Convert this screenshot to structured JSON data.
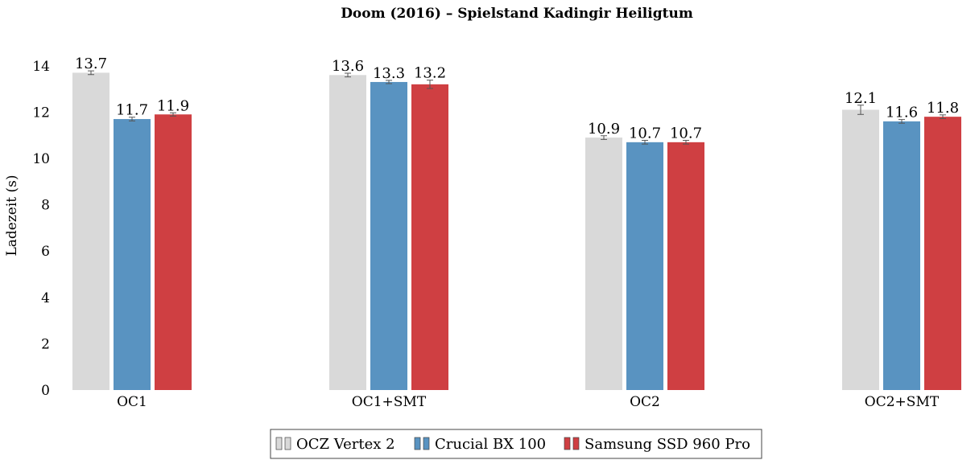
{
  "chart_data": {
    "type": "bar",
    "title": "Doom (2016) – Spielstand Kadingir Heiligtum",
    "xlabel": "",
    "ylabel": "Ladezeit (s)",
    "ylim": [
      0,
      15
    ],
    "yticks": [
      "0",
      "2",
      "4",
      "6",
      "8",
      "10",
      "12",
      "14"
    ],
    "grid": false,
    "legend_position": "bottom-center",
    "categories": [
      "OC1",
      "OC1+SMT",
      "OC2",
      "OC2+SMT"
    ],
    "series": [
      {
        "name": "OCZ Vertex 2",
        "color": "#d9d9d9",
        "values": [
          13.7,
          13.6,
          10.9,
          12.1
        ],
        "labels": [
          "13.7",
          "13.6",
          "10.9",
          "12.1"
        ],
        "errors": [
          0.08,
          0.08,
          0.08,
          0.2
        ]
      },
      {
        "name": "Crucial BX 100",
        "color": "#5993c1",
        "values": [
          11.7,
          13.3,
          10.7,
          11.6
        ],
        "labels": [
          "11.7",
          "13.3",
          "10.7",
          "11.6"
        ],
        "errors": [
          0.08,
          0.07,
          0.08,
          0.08
        ]
      },
      {
        "name": "Samsung SSD 960 Pro",
        "color": "#cf3f42",
        "values": [
          11.9,
          13.2,
          10.7,
          11.8
        ],
        "labels": [
          "11.9",
          "13.2",
          "10.7",
          "11.8"
        ],
        "errors": [
          0.07,
          0.18,
          0.08,
          0.08
        ]
      }
    ]
  }
}
